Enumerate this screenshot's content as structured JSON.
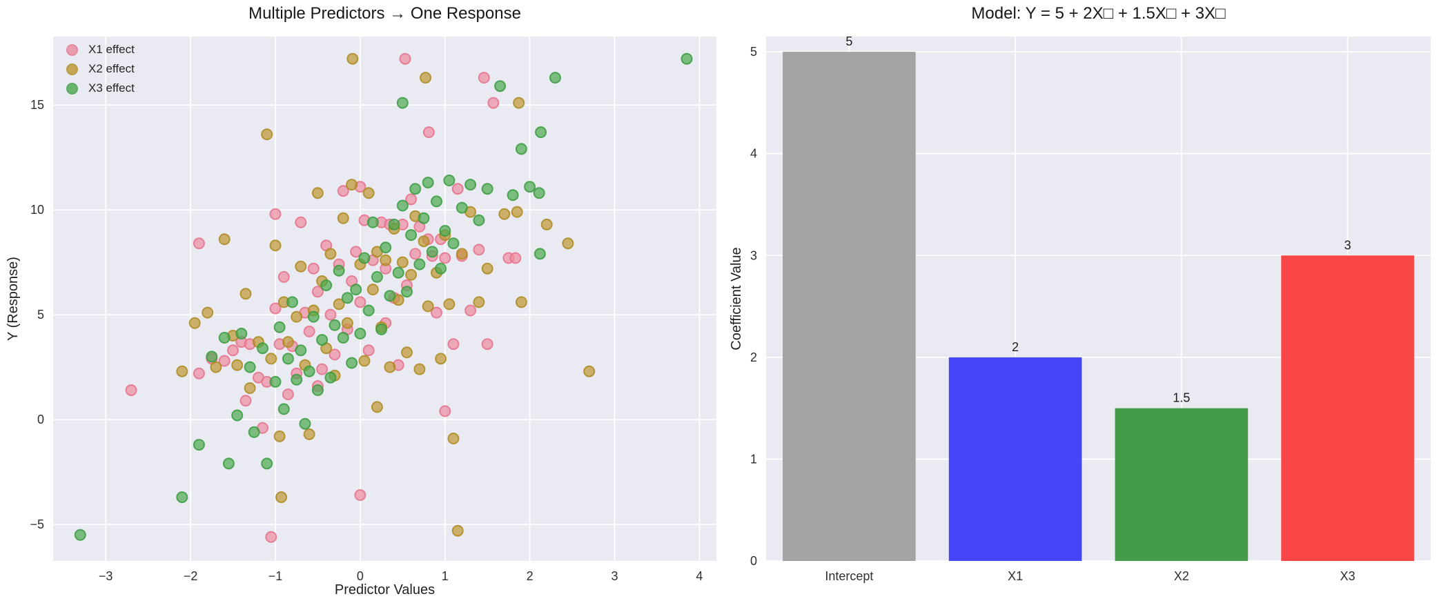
{
  "figure": {
    "background": "#ffffff",
    "axes_background": "#eaeaf2",
    "grid_color": "#ffffff",
    "tick_color": "#2e2e2e",
    "title_color": "#171717"
  },
  "chart_data": [
    {
      "type": "scatter",
      "title": "Multiple Predictors → One Response",
      "xlabel": "Predictor Values",
      "ylabel": "Y (Response)",
      "xlim": [
        -3.62,
        4.2
      ],
      "ylim": [
        -6.74,
        18.26
      ],
      "xticks": [
        -3,
        -2,
        -1,
        0,
        1,
        2,
        3,
        4
      ],
      "xtick_labels": [
        "−3",
        "−2",
        "−1",
        "0",
        "1",
        "2",
        "3",
        "4"
      ],
      "yticks": [
        -5,
        0,
        5,
        10,
        15
      ],
      "ytick_labels": [
        "−5",
        "0",
        "5",
        "10",
        "15"
      ],
      "grid": true,
      "legend_position": "upper left",
      "marker_radius": 7.5,
      "series": [
        {
          "name": "X1 effect",
          "color": "#ec8ba0",
          "edge_color": "#e5718b",
          "points": [
            [
              -2.7,
              1.4
            ],
            [
              -1.9,
              8.4
            ],
            [
              -1.9,
              2.2
            ],
            [
              -1.75,
              2.9
            ],
            [
              -1.6,
              2.8
            ],
            [
              -1.5,
              3.3
            ],
            [
              -1.4,
              3.7
            ],
            [
              -1.35,
              0.9
            ],
            [
              -1.3,
              3.6
            ],
            [
              -1.2,
              2.0
            ],
            [
              -1.15,
              -0.4
            ],
            [
              -1.1,
              1.8
            ],
            [
              -1.05,
              -5.6
            ],
            [
              -1.0,
              9.8
            ],
            [
              -1.0,
              5.3
            ],
            [
              -0.95,
              3.6
            ],
            [
              -0.9,
              6.8
            ],
            [
              -0.85,
              1.2
            ],
            [
              -0.8,
              3.5
            ],
            [
              -0.75,
              2.2
            ],
            [
              -0.7,
              9.4
            ],
            [
              -0.65,
              5.1
            ],
            [
              -0.6,
              4.2
            ],
            [
              -0.55,
              7.2
            ],
            [
              -0.5,
              1.6
            ],
            [
              -0.5,
              6.1
            ],
            [
              -0.45,
              2.4
            ],
            [
              -0.4,
              8.3
            ],
            [
              -0.35,
              5.0
            ],
            [
              -0.3,
              3.1
            ],
            [
              -0.25,
              7.4
            ],
            [
              -0.2,
              10.9
            ],
            [
              -0.15,
              4.3
            ],
            [
              -0.1,
              6.6
            ],
            [
              -0.05,
              8.0
            ],
            [
              0.0,
              11.1
            ],
            [
              0.0,
              5.6
            ],
            [
              0.0,
              -3.6
            ],
            [
              0.05,
              9.5
            ],
            [
              0.1,
              3.3
            ],
            [
              0.15,
              7.6
            ],
            [
              0.25,
              9.4
            ],
            [
              0.3,
              7.2
            ],
            [
              0.3,
              4.6
            ],
            [
              0.35,
              9.3
            ],
            [
              0.4,
              5.8
            ],
            [
              0.45,
              2.6
            ],
            [
              0.53,
              17.2
            ],
            [
              0.5,
              9.3
            ],
            [
              0.55,
              6.4
            ],
            [
              0.6,
              10.5
            ],
            [
              0.65,
              7.9
            ],
            [
              0.7,
              9.2
            ],
            [
              0.81,
              13.7
            ],
            [
              0.8,
              8.6
            ],
            [
              0.85,
              7.8
            ],
            [
              0.9,
              5.1
            ],
            [
              0.95,
              8.6
            ],
            [
              1.0,
              7.7
            ],
            [
              1.0,
              0.4
            ],
            [
              1.1,
              3.6
            ],
            [
              1.15,
              11.0
            ],
            [
              1.2,
              7.8
            ],
            [
              1.3,
              5.2
            ],
            [
              1.4,
              8.1
            ],
            [
              1.46,
              16.3
            ],
            [
              1.5,
              3.6
            ],
            [
              1.57,
              15.1
            ],
            [
              1.75,
              7.7
            ],
            [
              1.83,
              7.7
            ]
          ]
        },
        {
          "name": "X2 effect",
          "color": "#bd9630",
          "edge_color": "#ab8a20",
          "points": [
            [
              -2.1,
              2.3
            ],
            [
              -1.95,
              4.6
            ],
            [
              -1.8,
              5.1
            ],
            [
              -1.7,
              2.5
            ],
            [
              -1.6,
              8.6
            ],
            [
              -1.5,
              4.0
            ],
            [
              -1.45,
              2.6
            ],
            [
              -1.35,
              6.0
            ],
            [
              -1.3,
              1.5
            ],
            [
              -1.2,
              3.7
            ],
            [
              -1.1,
              13.6
            ],
            [
              -1.05,
              2.9
            ],
            [
              -1.0,
              8.3
            ],
            [
              -0.95,
              -0.8
            ],
            [
              -0.93,
              -3.7
            ],
            [
              -0.9,
              5.6
            ],
            [
              -0.85,
              3.7
            ],
            [
              -0.75,
              4.9
            ],
            [
              -0.7,
              7.3
            ],
            [
              -0.65,
              2.6
            ],
            [
              -0.6,
              -0.7
            ],
            [
              -0.55,
              5.2
            ],
            [
              -0.5,
              10.8
            ],
            [
              -0.45,
              6.6
            ],
            [
              -0.4,
              3.4
            ],
            [
              -0.35,
              7.9
            ],
            [
              -0.3,
              2.1
            ],
            [
              -0.25,
              5.5
            ],
            [
              -0.2,
              9.6
            ],
            [
              -0.15,
              4.6
            ],
            [
              -0.1,
              11.2
            ],
            [
              -0.09,
              17.2
            ],
            [
              0.0,
              7.4
            ],
            [
              0.05,
              2.8
            ],
            [
              0.1,
              10.8
            ],
            [
              0.15,
              6.2
            ],
            [
              0.2,
              8.0
            ],
            [
              0.2,
              0.6
            ],
            [
              0.25,
              4.4
            ],
            [
              0.3,
              7.6
            ],
            [
              0.35,
              2.5
            ],
            [
              0.4,
              9.1
            ],
            [
              0.45,
              5.7
            ],
            [
              0.5,
              7.5
            ],
            [
              0.55,
              3.2
            ],
            [
              0.6,
              6.9
            ],
            [
              0.65,
              9.7
            ],
            [
              0.7,
              2.4
            ],
            [
              0.75,
              8.5
            ],
            [
              0.77,
              16.3
            ],
            [
              0.8,
              5.4
            ],
            [
              0.9,
              7.0
            ],
            [
              0.95,
              2.9
            ],
            [
              1.0,
              8.8
            ],
            [
              1.05,
              5.5
            ],
            [
              1.1,
              -0.9
            ],
            [
              1.15,
              -5.3
            ],
            [
              1.2,
              7.9
            ],
            [
              1.3,
              9.9
            ],
            [
              1.4,
              5.6
            ],
            [
              1.5,
              7.2
            ],
            [
              1.7,
              9.8
            ],
            [
              1.85,
              9.9
            ],
            [
              1.87,
              15.1
            ],
            [
              1.9,
              5.6
            ],
            [
              2.2,
              9.3
            ],
            [
              2.45,
              8.4
            ],
            [
              2.7,
              2.3
            ]
          ]
        },
        {
          "name": "X3 effect",
          "color": "#4aa94e",
          "edge_color": "#3a9b3f",
          "points": [
            [
              -3.3,
              -5.5
            ],
            [
              -2.1,
              -3.7
            ],
            [
              -1.9,
              -1.2
            ],
            [
              -1.75,
              3.0
            ],
            [
              -1.6,
              3.9
            ],
            [
              -1.55,
              -2.1
            ],
            [
              -1.45,
              0.2
            ],
            [
              -1.4,
              4.1
            ],
            [
              -1.3,
              2.5
            ],
            [
              -1.25,
              -0.6
            ],
            [
              -1.15,
              3.4
            ],
            [
              -1.1,
              -2.1
            ],
            [
              -1.0,
              1.8
            ],
            [
              -0.95,
              4.4
            ],
            [
              -0.9,
              0.5
            ],
            [
              -0.85,
              2.9
            ],
            [
              -0.8,
              5.6
            ],
            [
              -0.75,
              1.9
            ],
            [
              -0.7,
              3.3
            ],
            [
              -0.65,
              -0.2
            ],
            [
              -0.6,
              2.3
            ],
            [
              -0.55,
              4.9
            ],
            [
              -0.5,
              1.4
            ],
            [
              -0.45,
              3.8
            ],
            [
              -0.4,
              6.4
            ],
            [
              -0.35,
              2.0
            ],
            [
              -0.3,
              4.5
            ],
            [
              -0.25,
              7.1
            ],
            [
              -0.2,
              3.9
            ],
            [
              -0.15,
              5.8
            ],
            [
              -0.1,
              2.7
            ],
            [
              -0.05,
              6.2
            ],
            [
              0.0,
              4.1
            ],
            [
              0.05,
              7.7
            ],
            [
              0.1,
              5.2
            ],
            [
              0.15,
              9.4
            ],
            [
              0.2,
              6.8
            ],
            [
              0.25,
              4.3
            ],
            [
              0.3,
              8.2
            ],
            [
              0.35,
              5.9
            ],
            [
              0.4,
              9.3
            ],
            [
              0.45,
              7.0
            ],
            [
              0.5,
              15.1
            ],
            [
              0.5,
              10.2
            ],
            [
              0.55,
              6.1
            ],
            [
              0.6,
              8.8
            ],
            [
              0.65,
              11.0
            ],
            [
              0.7,
              7.4
            ],
            [
              0.75,
              9.6
            ],
            [
              0.8,
              11.3
            ],
            [
              0.85,
              8.0
            ],
            [
              0.9,
              10.4
            ],
            [
              0.95,
              7.2
            ],
            [
              1.0,
              9.0
            ],
            [
              1.05,
              11.4
            ],
            [
              1.1,
              8.4
            ],
            [
              1.2,
              10.1
            ],
            [
              1.3,
              11.2
            ],
            [
              1.4,
              9.5
            ],
            [
              1.5,
              11.0
            ],
            [
              1.65,
              15.9
            ],
            [
              1.8,
              10.7
            ],
            [
              1.9,
              12.9
            ],
            [
              2.0,
              11.1
            ],
            [
              2.12,
              7.9
            ],
            [
              2.13,
              13.7
            ],
            [
              2.11,
              10.8
            ],
            [
              2.3,
              16.3
            ],
            [
              3.85,
              17.2
            ]
          ]
        }
      ]
    },
    {
      "type": "bar",
      "title": "Model: Y = 5 + 2X□ + 1.5X□ + 3X□",
      "xlabel": "",
      "ylabel": "Coefficient Value",
      "categories": [
        "Intercept",
        "X1",
        "X2",
        "X3"
      ],
      "values": [
        5,
        2,
        1.5,
        3
      ],
      "value_labels": [
        "5",
        "2",
        "1.5",
        "3"
      ],
      "bar_colors": [
        "#a3a3a3",
        "#4646f8",
        "#449c4a",
        "#f84545"
      ],
      "ylim": [
        0,
        5.15
      ],
      "yticks": [
        0,
        1,
        2,
        3,
        4,
        5
      ],
      "ytick_labels": [
        "0",
        "1",
        "2",
        "3",
        "4",
        "5"
      ],
      "grid": true
    }
  ]
}
